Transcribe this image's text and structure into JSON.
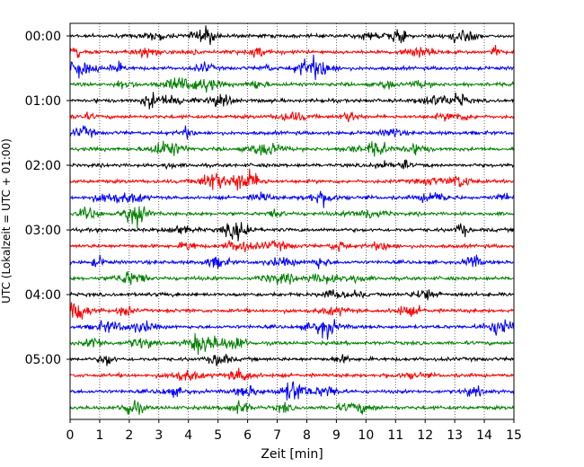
{
  "chart_data": {
    "type": "line",
    "title": "",
    "xlabel": "Zeit  [min]",
    "ylabel": "UTC (Lokalzeit = UTC + 01:00)",
    "xlim": [
      0,
      15
    ],
    "x_ticks": [
      0,
      1,
      2,
      3,
      4,
      5,
      6,
      7,
      8,
      9,
      10,
      11,
      12,
      13,
      14,
      15
    ],
    "x_tick_labels": [
      "0",
      "1",
      "2",
      "3",
      "4",
      "5",
      "6",
      "7",
      "8",
      "9",
      "10",
      "11",
      "12",
      "13",
      "14",
      "15"
    ],
    "y_tick_labels": [
      "00:00",
      "01:00",
      "02:00",
      "03:00",
      "04:00",
      "05:00"
    ],
    "y_tick_trace_index": [
      0,
      4,
      8,
      12,
      16,
      20
    ],
    "trace_count": 24,
    "trace_interval_minutes": 15,
    "trace_colors": [
      "#000000",
      "#ff0000",
      "#0000ff",
      "#008000"
    ],
    "grid": {
      "x": true,
      "style": "dotted"
    },
    "legend": "none"
  }
}
